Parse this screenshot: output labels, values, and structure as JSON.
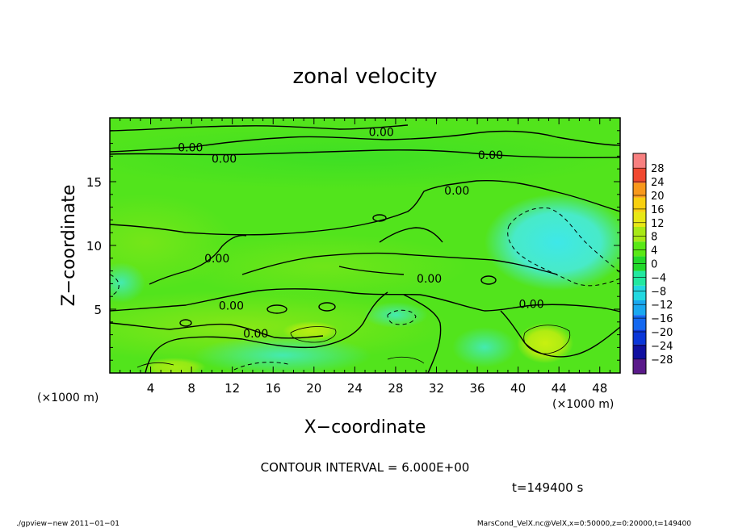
{
  "chart_data": {
    "type": "heatmap",
    "title": "zonal velocity",
    "xlabel": "X−coordinate",
    "ylabel": "Z−coordinate",
    "x_unit": "(×1000 m)",
    "y_unit": "(×1000 m)",
    "xlim": [
      0,
      50
    ],
    "ylim": [
      0,
      20
    ],
    "x_ticks": [
      4,
      8,
      12,
      16,
      20,
      24,
      28,
      32,
      36,
      40,
      44,
      48
    ],
    "x_tick_labels": [
      "4",
      "8",
      "12",
      "16",
      "20",
      "24",
      "28",
      "32",
      "36",
      "40",
      "44",
      "48"
    ],
    "y_ticks": [
      5,
      10,
      15
    ],
    "y_tick_labels": [
      "5",
      "10",
      "15"
    ],
    "contour_interval_text": "CONTOUR INTERVAL = 6.000E+00",
    "time_text": "t=149400 s",
    "contour_label": "0.00",
    "contour_labels": [
      {
        "x": 26.6,
        "y": 18.9,
        "text": "0.00"
      },
      {
        "x": 7.9,
        "y": 17.7,
        "text": "0.00"
      },
      {
        "x": 11.2,
        "y": 16.8,
        "text": "0.00"
      },
      {
        "x": 37.3,
        "y": 17.1,
        "text": "0.00"
      },
      {
        "x": 34.0,
        "y": 14.3,
        "text": "0.00"
      },
      {
        "x": 10.5,
        "y": 9.0,
        "text": "0.00"
      },
      {
        "x": 31.3,
        "y": 7.4,
        "text": "0.00"
      },
      {
        "x": 11.9,
        "y": 5.3,
        "text": "0.00"
      },
      {
        "x": 41.3,
        "y": 5.4,
        "text": "0.00"
      },
      {
        "x": 14.3,
        "y": 3.1,
        "text": "0.00"
      }
    ],
    "colorbar": {
      "levels": [
        -28,
        -24,
        -20,
        -16,
        -12,
        -8,
        -4,
        0,
        4,
        8,
        12,
        16,
        20,
        24,
        28
      ],
      "labels": [
        "28",
        "24",
        "20",
        "16",
        "12",
        "8",
        "4",
        "0",
        "−4",
        "−8",
        "−12",
        "−16",
        "−20",
        "−24",
        "−28"
      ],
      "colors": [
        "#5a1a8a",
        "#1010a0",
        "#0a36d8",
        "#1468f0",
        "#1aa8f0",
        "#22d8e0",
        "#22e8a0",
        "#22d82a",
        "#5ae816",
        "#a8e816",
        "#e8e816",
        "#f8d010",
        "#f8981c",
        "#f04830",
        "#f88080"
      ]
    },
    "grid": false,
    "legend": "right colorbar"
  },
  "footer": {
    "left": "./gpview−new   2011−01−01",
    "right": "MarsCond_VelX.nc@VelX,x=0:50000,z=0:20000,t=149400"
  }
}
